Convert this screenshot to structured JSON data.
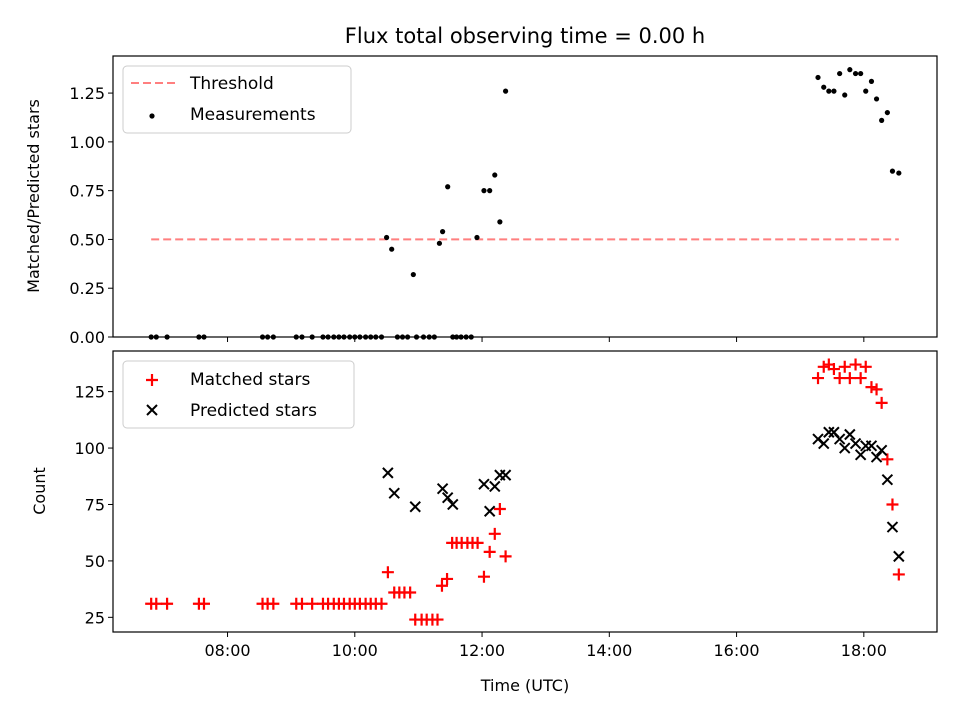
{
  "chart_data": [
    {
      "type": "scatter",
      "title": "Flux total observing time = 0.00 h",
      "xlabel": "",
      "ylabel": "Matched/Predicted stars",
      "xlim": [
        6.2,
        19.15
      ],
      "ylim": [
        0.0,
        1.44
      ],
      "yticks": [
        0.0,
        0.25,
        0.5,
        0.75,
        1.0,
        1.25
      ],
      "ytick_labels": [
        "0.00",
        "0.25",
        "0.50",
        "0.75",
        "1.00",
        "1.25"
      ],
      "xticks": [
        8,
        10,
        12,
        14,
        16,
        18
      ],
      "legend": {
        "placement": "top-left",
        "entries": [
          "Threshold",
          "Measurements"
        ]
      },
      "threshold": {
        "name": "Threshold",
        "x": [
          6.8,
          18.55
        ],
        "y": 0.5,
        "color": "#ff7f7f"
      },
      "series": [
        {
          "name": "Measurements",
          "color": "#000000",
          "x": [
            6.8,
            6.88,
            7.05,
            7.55,
            7.63,
            8.55,
            8.63,
            8.72,
            9.08,
            9.17,
            9.33,
            9.5,
            9.58,
            9.67,
            9.75,
            9.83,
            9.92,
            10.0,
            10.08,
            10.17,
            10.25,
            10.33,
            10.42,
            10.5,
            10.58,
            10.67,
            10.75,
            10.83,
            10.92,
            10.97,
            11.08,
            11.17,
            11.25,
            11.33,
            11.38,
            11.46,
            11.54,
            11.6,
            11.67,
            11.75,
            11.83,
            11.92,
            12.03,
            12.12,
            12.2,
            12.28,
            12.37,
            17.28,
            17.37,
            17.45,
            17.53,
            17.62,
            17.7,
            17.78,
            17.87,
            17.95,
            18.03,
            18.12,
            18.2,
            18.28,
            18.37,
            18.45,
            18.55
          ],
          "y": [
            0,
            0,
            0,
            0,
            0,
            0,
            0,
            0,
            0,
            0,
            0,
            0,
            0,
            0,
            0,
            0,
            0,
            0,
            0,
            0,
            0,
            0,
            0,
            0.51,
            0.45,
            0,
            0,
            0,
            0.32,
            0,
            0,
            0,
            0,
            0.48,
            0.54,
            0.77,
            0,
            0,
            0,
            0,
            0,
            0.51,
            0.75,
            0.75,
            0.83,
            0.59,
            1.26,
            1.33,
            1.28,
            1.26,
            1.26,
            1.35,
            1.24,
            1.37,
            1.35,
            1.35,
            1.26,
            1.31,
            1.22,
            1.11,
            1.15,
            0.85,
            0.84
          ]
        }
      ]
    },
    {
      "type": "scatter",
      "title": "",
      "xlabel": "Time (UTC)",
      "ylabel": "Count",
      "xlim": [
        6.2,
        19.15
      ],
      "ylim": [
        18.5,
        143
      ],
      "yticks": [
        25,
        50,
        75,
        100,
        125
      ],
      "ytick_labels": [
        "25",
        "50",
        "75",
        "100",
        "125"
      ],
      "xticks": [
        8,
        10,
        12,
        14,
        16,
        18
      ],
      "xtick_labels": [
        "08:00",
        "10:00",
        "12:00",
        "14:00",
        "16:00",
        "18:00"
      ],
      "legend": {
        "placement": "top-left",
        "entries": [
          "Matched stars",
          "Predicted stars"
        ]
      },
      "series": [
        {
          "name": "Matched stars",
          "color": "#ff0000",
          "x": [
            6.8,
            6.88,
            7.05,
            7.55,
            7.63,
            8.55,
            8.63,
            8.72,
            9.08,
            9.17,
            9.33,
            9.5,
            9.58,
            9.67,
            9.75,
            9.83,
            9.92,
            10.0,
            10.08,
            10.17,
            10.25,
            10.33,
            10.42,
            10.52,
            10.62,
            10.7,
            10.78,
            10.87,
            10.95,
            11.05,
            11.13,
            11.22,
            11.3,
            11.37,
            11.45,
            11.53,
            11.6,
            11.68,
            11.77,
            11.85,
            11.93,
            12.03,
            12.12,
            12.2,
            12.28,
            12.37,
            17.28,
            17.37,
            17.45,
            17.53,
            17.62,
            17.7,
            17.78,
            17.87,
            17.95,
            18.03,
            18.12,
            18.2,
            18.28,
            18.37,
            18.45,
            18.55
          ],
          "y": [
            31,
            31,
            31,
            31,
            31,
            31,
            31,
            31,
            31,
            31,
            31,
            31,
            31,
            31,
            31,
            31,
            31,
            31,
            31,
            31,
            31,
            31,
            31,
            45,
            36,
            36,
            36,
            36,
            24,
            24,
            24,
            24,
            24,
            39,
            42,
            58,
            58,
            58,
            58,
            58,
            58,
            43,
            54,
            62,
            73,
            52,
            131,
            136,
            137,
            135,
            131,
            136,
            131,
            137,
            131,
            136,
            127,
            126,
            120,
            95,
            75,
            44
          ]
        },
        {
          "name": "Predicted stars",
          "color": "#000000",
          "x": [
            10.52,
            10.62,
            10.95,
            11.38,
            11.46,
            11.54,
            12.03,
            12.12,
            12.2,
            12.28,
            12.37,
            17.28,
            17.37,
            17.45,
            17.53,
            17.62,
            17.7,
            17.78,
            17.87,
            17.95,
            18.03,
            18.12,
            18.2,
            18.28,
            18.37,
            18.45,
            18.55
          ],
          "y": [
            89,
            80,
            74,
            82,
            78,
            75,
            84,
            72,
            83,
            88,
            88,
            104,
            102,
            107,
            107,
            104,
            100,
            106,
            102,
            97,
            101,
            101,
            96,
            99,
            86,
            65,
            52
          ]
        }
      ]
    }
  ]
}
